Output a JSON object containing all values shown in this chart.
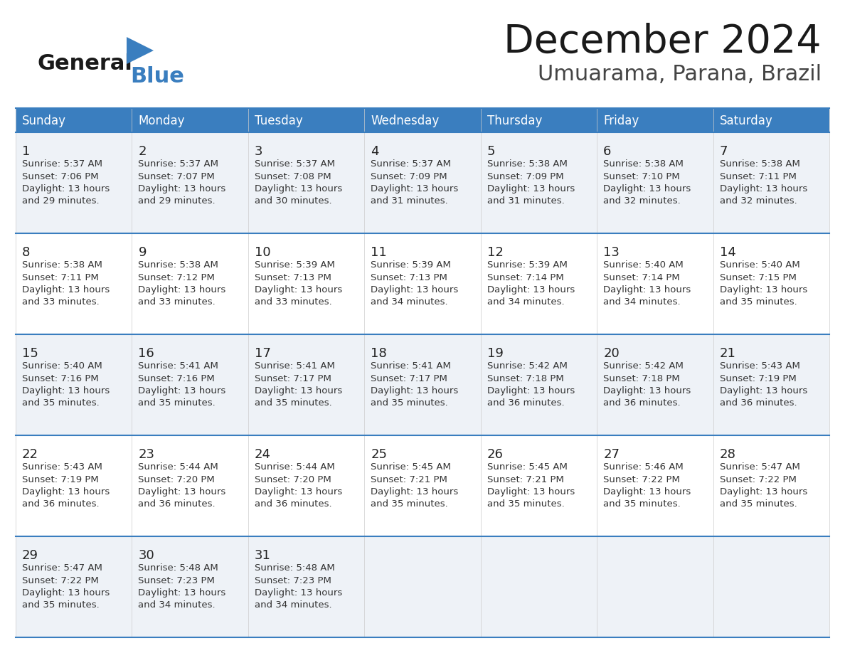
{
  "title": "December 2024",
  "subtitle": "Umuarama, Parana, Brazil",
  "days_of_week": [
    "Sunday",
    "Monday",
    "Tuesday",
    "Wednesday",
    "Thursday",
    "Friday",
    "Saturday"
  ],
  "header_bg": "#3a7ebf",
  "header_text": "#ffffff",
  "row_bg_light": "#eef2f7",
  "row_bg_white": "#ffffff",
  "cell_border_color": "#3a7ebf",
  "row_divider_color": "#3a7ebf",
  "text_color": "#333333",
  "calendar_data": [
    [
      {
        "day": 1,
        "sunrise": "5:37 AM",
        "sunset": "7:06 PM",
        "daylight_h": "13 hours",
        "daylight_m": "29 minutes."
      },
      {
        "day": 2,
        "sunrise": "5:37 AM",
        "sunset": "7:07 PM",
        "daylight_h": "13 hours",
        "daylight_m": "29 minutes."
      },
      {
        "day": 3,
        "sunrise": "5:37 AM",
        "sunset": "7:08 PM",
        "daylight_h": "13 hours",
        "daylight_m": "30 minutes."
      },
      {
        "day": 4,
        "sunrise": "5:37 AM",
        "sunset": "7:09 PM",
        "daylight_h": "13 hours",
        "daylight_m": "31 minutes."
      },
      {
        "day": 5,
        "sunrise": "5:38 AM",
        "sunset": "7:09 PM",
        "daylight_h": "13 hours",
        "daylight_m": "31 minutes."
      },
      {
        "day": 6,
        "sunrise": "5:38 AM",
        "sunset": "7:10 PM",
        "daylight_h": "13 hours",
        "daylight_m": "32 minutes."
      },
      {
        "day": 7,
        "sunrise": "5:38 AM",
        "sunset": "7:11 PM",
        "daylight_h": "13 hours",
        "daylight_m": "32 minutes."
      }
    ],
    [
      {
        "day": 8,
        "sunrise": "5:38 AM",
        "sunset": "7:11 PM",
        "daylight_h": "13 hours",
        "daylight_m": "33 minutes."
      },
      {
        "day": 9,
        "sunrise": "5:38 AM",
        "sunset": "7:12 PM",
        "daylight_h": "13 hours",
        "daylight_m": "33 minutes."
      },
      {
        "day": 10,
        "sunrise": "5:39 AM",
        "sunset": "7:13 PM",
        "daylight_h": "13 hours",
        "daylight_m": "33 minutes."
      },
      {
        "day": 11,
        "sunrise": "5:39 AM",
        "sunset": "7:13 PM",
        "daylight_h": "13 hours",
        "daylight_m": "34 minutes."
      },
      {
        "day": 12,
        "sunrise": "5:39 AM",
        "sunset": "7:14 PM",
        "daylight_h": "13 hours",
        "daylight_m": "34 minutes."
      },
      {
        "day": 13,
        "sunrise": "5:40 AM",
        "sunset": "7:14 PM",
        "daylight_h": "13 hours",
        "daylight_m": "34 minutes."
      },
      {
        "day": 14,
        "sunrise": "5:40 AM",
        "sunset": "7:15 PM",
        "daylight_h": "13 hours",
        "daylight_m": "35 minutes."
      }
    ],
    [
      {
        "day": 15,
        "sunrise": "5:40 AM",
        "sunset": "7:16 PM",
        "daylight_h": "13 hours",
        "daylight_m": "35 minutes."
      },
      {
        "day": 16,
        "sunrise": "5:41 AM",
        "sunset": "7:16 PM",
        "daylight_h": "13 hours",
        "daylight_m": "35 minutes."
      },
      {
        "day": 17,
        "sunrise": "5:41 AM",
        "sunset": "7:17 PM",
        "daylight_h": "13 hours",
        "daylight_m": "35 minutes."
      },
      {
        "day": 18,
        "sunrise": "5:41 AM",
        "sunset": "7:17 PM",
        "daylight_h": "13 hours",
        "daylight_m": "35 minutes."
      },
      {
        "day": 19,
        "sunrise": "5:42 AM",
        "sunset": "7:18 PM",
        "daylight_h": "13 hours",
        "daylight_m": "36 minutes."
      },
      {
        "day": 20,
        "sunrise": "5:42 AM",
        "sunset": "7:18 PM",
        "daylight_h": "13 hours",
        "daylight_m": "36 minutes."
      },
      {
        "day": 21,
        "sunrise": "5:43 AM",
        "sunset": "7:19 PM",
        "daylight_h": "13 hours",
        "daylight_m": "36 minutes."
      }
    ],
    [
      {
        "day": 22,
        "sunrise": "5:43 AM",
        "sunset": "7:19 PM",
        "daylight_h": "13 hours",
        "daylight_m": "36 minutes."
      },
      {
        "day": 23,
        "sunrise": "5:44 AM",
        "sunset": "7:20 PM",
        "daylight_h": "13 hours",
        "daylight_m": "36 minutes."
      },
      {
        "day": 24,
        "sunrise": "5:44 AM",
        "sunset": "7:20 PM",
        "daylight_h": "13 hours",
        "daylight_m": "36 minutes."
      },
      {
        "day": 25,
        "sunrise": "5:45 AM",
        "sunset": "7:21 PM",
        "daylight_h": "13 hours",
        "daylight_m": "35 minutes."
      },
      {
        "day": 26,
        "sunrise": "5:45 AM",
        "sunset": "7:21 PM",
        "daylight_h": "13 hours",
        "daylight_m": "35 minutes."
      },
      {
        "day": 27,
        "sunrise": "5:46 AM",
        "sunset": "7:22 PM",
        "daylight_h": "13 hours",
        "daylight_m": "35 minutes."
      },
      {
        "day": 28,
        "sunrise": "5:47 AM",
        "sunset": "7:22 PM",
        "daylight_h": "13 hours",
        "daylight_m": "35 minutes."
      }
    ],
    [
      {
        "day": 29,
        "sunrise": "5:47 AM",
        "sunset": "7:22 PM",
        "daylight_h": "13 hours",
        "daylight_m": "35 minutes."
      },
      {
        "day": 30,
        "sunrise": "5:48 AM",
        "sunset": "7:23 PM",
        "daylight_h": "13 hours",
        "daylight_m": "34 minutes."
      },
      {
        "day": 31,
        "sunrise": "5:48 AM",
        "sunset": "7:23 PM",
        "daylight_h": "13 hours",
        "daylight_m": "34 minutes."
      },
      null,
      null,
      null,
      null
    ]
  ]
}
